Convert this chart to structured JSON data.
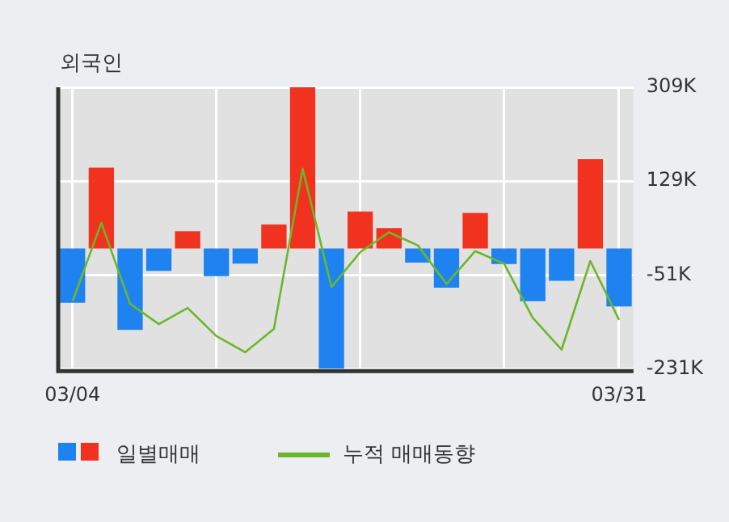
{
  "chart_data": {
    "type": "bar",
    "title": "외국인",
    "categories": [
      "03/04",
      null,
      null,
      null,
      null,
      null,
      null,
      null,
      null,
      null,
      null,
      null,
      null,
      null,
      null,
      null,
      null,
      null,
      null,
      "03/31"
    ],
    "series": [
      {
        "name": "일별매매",
        "colors": [
          "#1e82f0",
          "#f0321e",
          "#1e82f0",
          "#1e82f0",
          "#f0321e",
          "#1e82f0",
          "#1e82f0",
          "#f0321e",
          "#f0321e",
          "#1e82f0",
          "#f0321e",
          "#f0321e",
          "#1e82f0",
          "#1e82f0",
          "#f0321e",
          "#1e82f0",
          "#1e82f0",
          "#1e82f0",
          "#f0321e",
          "#1e82f0"
        ],
        "values": [
          -104,
          155,
          -156,
          -43,
          33,
          -53,
          -29,
          46,
          309,
          -230,
          71,
          39,
          -27,
          -75,
          68,
          -30,
          -101,
          -62,
          171,
          -111
        ]
      },
      {
        "type": "line",
        "name": "누적 매매동향",
        "color": "#6ab82a",
        "values": [
          -101,
          49,
          -106,
          -145,
          -114,
          -168,
          -199,
          -154,
          153,
          -74,
          -7,
          31,
          6,
          -68,
          -5,
          -29,
          -133,
          -194,
          -24,
          -137
        ]
      }
    ],
    "ylim": [
      -235,
      309
    ],
    "yticks": [
      {
        "value": 309,
        "label": "309K"
      },
      {
        "value": 129,
        "label": "129K"
      },
      {
        "value": -51,
        "label": "-51K"
      },
      {
        "value": -231,
        "label": "-231K"
      }
    ],
    "grid": true,
    "legend": "bottom",
    "marker": "none"
  }
}
